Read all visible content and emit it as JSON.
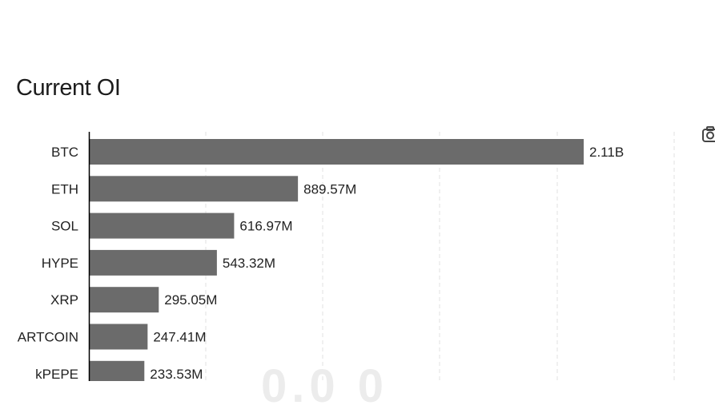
{
  "header": {
    "title": "Current OI"
  },
  "colors": {
    "bar": "#6b6b6b",
    "axis": "#000000",
    "grid": "#e2e2e2"
  },
  "icons": {
    "toolbar": "camera-icon"
  },
  "chart_data": {
    "type": "bar",
    "orientation": "horizontal",
    "title": "Current OI",
    "categories": [
      "BTC",
      "ETH",
      "SOL",
      "HYPE",
      "XRP",
      "ARTCOIN",
      "kPEPE"
    ],
    "values": [
      2110000000,
      889570000,
      616970000,
      543320000,
      295050000,
      247410000,
      233530000
    ],
    "value_labels": [
      "2.11B",
      "889.57M",
      "616.97M",
      "543.32M",
      "295.05M",
      "247.41M",
      "233.53M"
    ],
    "xlim": [
      0,
      2500000000
    ],
    "gridlines": "vertical-dashed",
    "grid": true
  }
}
